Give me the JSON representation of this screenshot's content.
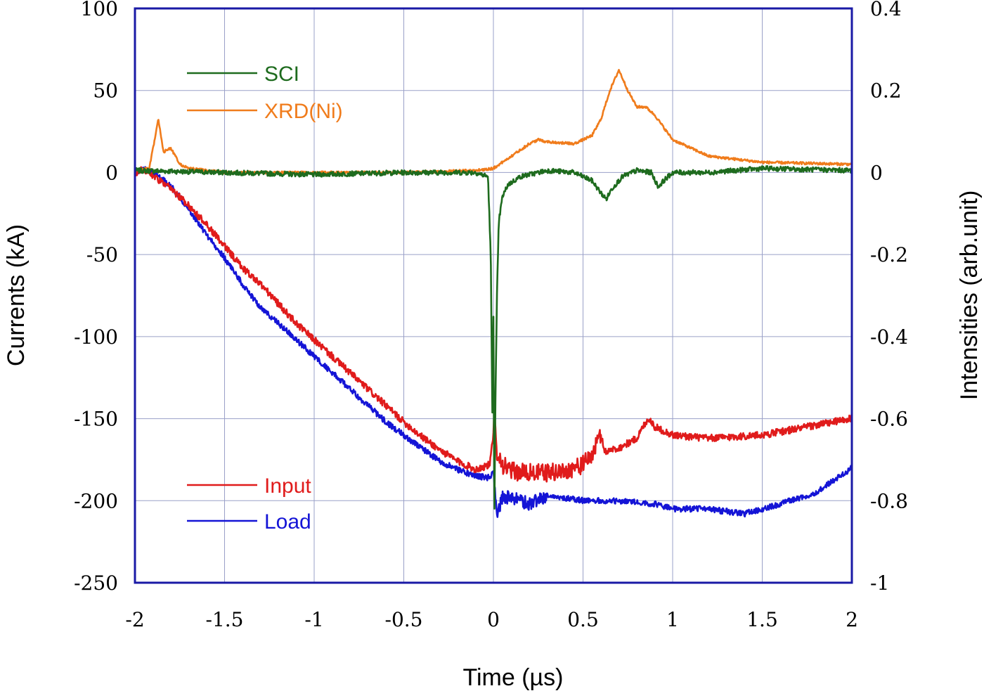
{
  "chart_data": {
    "type": "line",
    "xlabel": "Time (µs)",
    "ylabel_left": "Currents (kA)",
    "ylabel_right": "Intensities (arb.unit)",
    "xlim": [
      -2,
      2
    ],
    "ylim_left": [
      -250,
      100
    ],
    "ylim_right": [
      -1,
      0.4
    ],
    "x_ticks": [
      -2,
      -1.5,
      -1,
      -0.5,
      0,
      0.5,
      1,
      1.5,
      2
    ],
    "x_tick_labels": [
      "-2",
      "-1.5",
      "-1",
      "-0.5",
      "0",
      "0.5",
      "1",
      "1.5",
      "2"
    ],
    "y_left_ticks": [
      100,
      50,
      0,
      -50,
      -100,
      -150,
      -200,
      -250
    ],
    "y_left_tick_labels": [
      "100",
      "50",
      "0",
      "-50",
      "-100",
      "-150",
      "-200",
      "-250"
    ],
    "y_right_ticks": [
      0.4,
      0.2,
      0,
      -0.2,
      -0.4,
      -0.6,
      -0.8,
      -1
    ],
    "y_right_tick_labels": [
      "0.4",
      "0.2",
      "0",
      "-0.2",
      "-0.4",
      "-0.6",
      "-0.8",
      "-1"
    ],
    "grid": true,
    "colors": {
      "axis": "#1a1aa6",
      "grid": "#9aa0c8"
    },
    "series": [
      {
        "name": "SCI",
        "axis": "right",
        "color": "#1e6b1e",
        "noise": 0.006,
        "x": [
          -2,
          -1.5,
          -1,
          -0.5,
          -0.1,
          -0.03,
          -0.015,
          -0.005,
          0,
          0.005,
          0.01,
          0.015,
          0.02,
          0.03,
          0.05,
          0.08,
          0.15,
          0.3,
          0.45,
          0.55,
          0.6,
          0.63,
          0.66,
          0.72,
          0.8,
          0.88,
          0.92,
          0.95,
          1.0,
          1.2,
          1.5,
          2.0
        ],
        "y": [
          0.005,
          0.0,
          -0.005,
          0.0,
          0.0,
          -0.01,
          -0.2,
          -0.62,
          -0.35,
          -0.85,
          -0.6,
          -0.45,
          -0.3,
          -0.12,
          -0.06,
          -0.03,
          -0.01,
          0.005,
          0.0,
          -0.02,
          -0.05,
          -0.065,
          -0.04,
          -0.01,
          0.005,
          0.0,
          -0.035,
          -0.02,
          0.0,
          0.0,
          0.01,
          0.005
        ]
      },
      {
        "name": "XRD(Ni)",
        "axis": "right",
        "color": "#f07c1c",
        "noise": 0.003,
        "x": [
          -2,
          -1.92,
          -1.89,
          -1.87,
          -1.84,
          -1.8,
          -1.75,
          -1.7,
          -1.5,
          -1,
          -0.5,
          -0.1,
          0,
          0.1,
          0.2,
          0.25,
          0.3,
          0.45,
          0.55,
          0.6,
          0.65,
          0.7,
          0.75,
          0.8,
          0.85,
          0.9,
          1.0,
          1.2,
          1.5,
          2.0
        ],
        "y": [
          0.005,
          0.01,
          0.08,
          0.13,
          0.05,
          0.06,
          0.02,
          0.01,
          0.0,
          0.0,
          0.0,
          0.005,
          0.01,
          0.04,
          0.07,
          0.08,
          0.075,
          0.07,
          0.09,
          0.13,
          0.2,
          0.25,
          0.2,
          0.16,
          0.16,
          0.14,
          0.08,
          0.04,
          0.025,
          0.02
        ]
      },
      {
        "name": "Input",
        "axis": "left",
        "color": "#e01b1b",
        "noise": 2.2,
        "x": [
          -2,
          -1.95,
          -1.9,
          -1.8,
          -1.7,
          -1.6,
          -1.5,
          -1.4,
          -1.3,
          -1.2,
          -1.1,
          -1.0,
          -0.9,
          -0.8,
          -0.7,
          -0.6,
          -0.5,
          -0.4,
          -0.3,
          -0.2,
          -0.1,
          -0.02,
          0,
          0.005,
          0.02,
          0.05,
          0.1,
          0.2,
          0.3,
          0.4,
          0.5,
          0.55,
          0.6,
          0.62,
          0.7,
          0.8,
          0.85,
          0.87,
          0.9,
          1.0,
          1.2,
          1.5,
          2.0
        ],
        "y": [
          0,
          2,
          -2,
          -10,
          -20,
          -32,
          -45,
          -58,
          -68,
          -80,
          -92,
          -102,
          -112,
          -122,
          -132,
          -142,
          -152,
          -161,
          -169,
          -176,
          -181,
          -178,
          -160,
          -145,
          -170,
          -178,
          -182,
          -183,
          -183,
          -182,
          -178,
          -172,
          -160,
          -170,
          -168,
          -162,
          -152,
          -150,
          -155,
          -160,
          -162,
          -160,
          -150
        ]
      },
      {
        "name": "Load",
        "axis": "left",
        "color": "#1414d6",
        "noise": 1.8,
        "x": [
          -2,
          -1.95,
          -1.9,
          -1.8,
          -1.7,
          -1.6,
          -1.5,
          -1.4,
          -1.3,
          -1.2,
          -1.1,
          -1.0,
          -0.9,
          -0.8,
          -0.7,
          -0.6,
          -0.5,
          -0.4,
          -0.3,
          -0.2,
          -0.1,
          -0.02,
          0,
          0.01,
          0.02,
          0.03,
          0.05,
          0.1,
          0.2,
          0.3,
          0.5,
          0.7,
          0.9,
          1.0,
          1.2,
          1.4,
          1.6,
          1.8,
          2.0
        ],
        "y": [
          0,
          2,
          0,
          -8,
          -22,
          -38,
          -52,
          -68,
          -82,
          -92,
          -102,
          -112,
          -122,
          -132,
          -142,
          -152,
          -160,
          -168,
          -176,
          -181,
          -185,
          -186,
          -183,
          -195,
          -210,
          -205,
          -198,
          -198,
          -202,
          -197,
          -200,
          -200,
          -202,
          -205,
          -205,
          -208,
          -202,
          -195,
          -180
        ]
      }
    ]
  }
}
